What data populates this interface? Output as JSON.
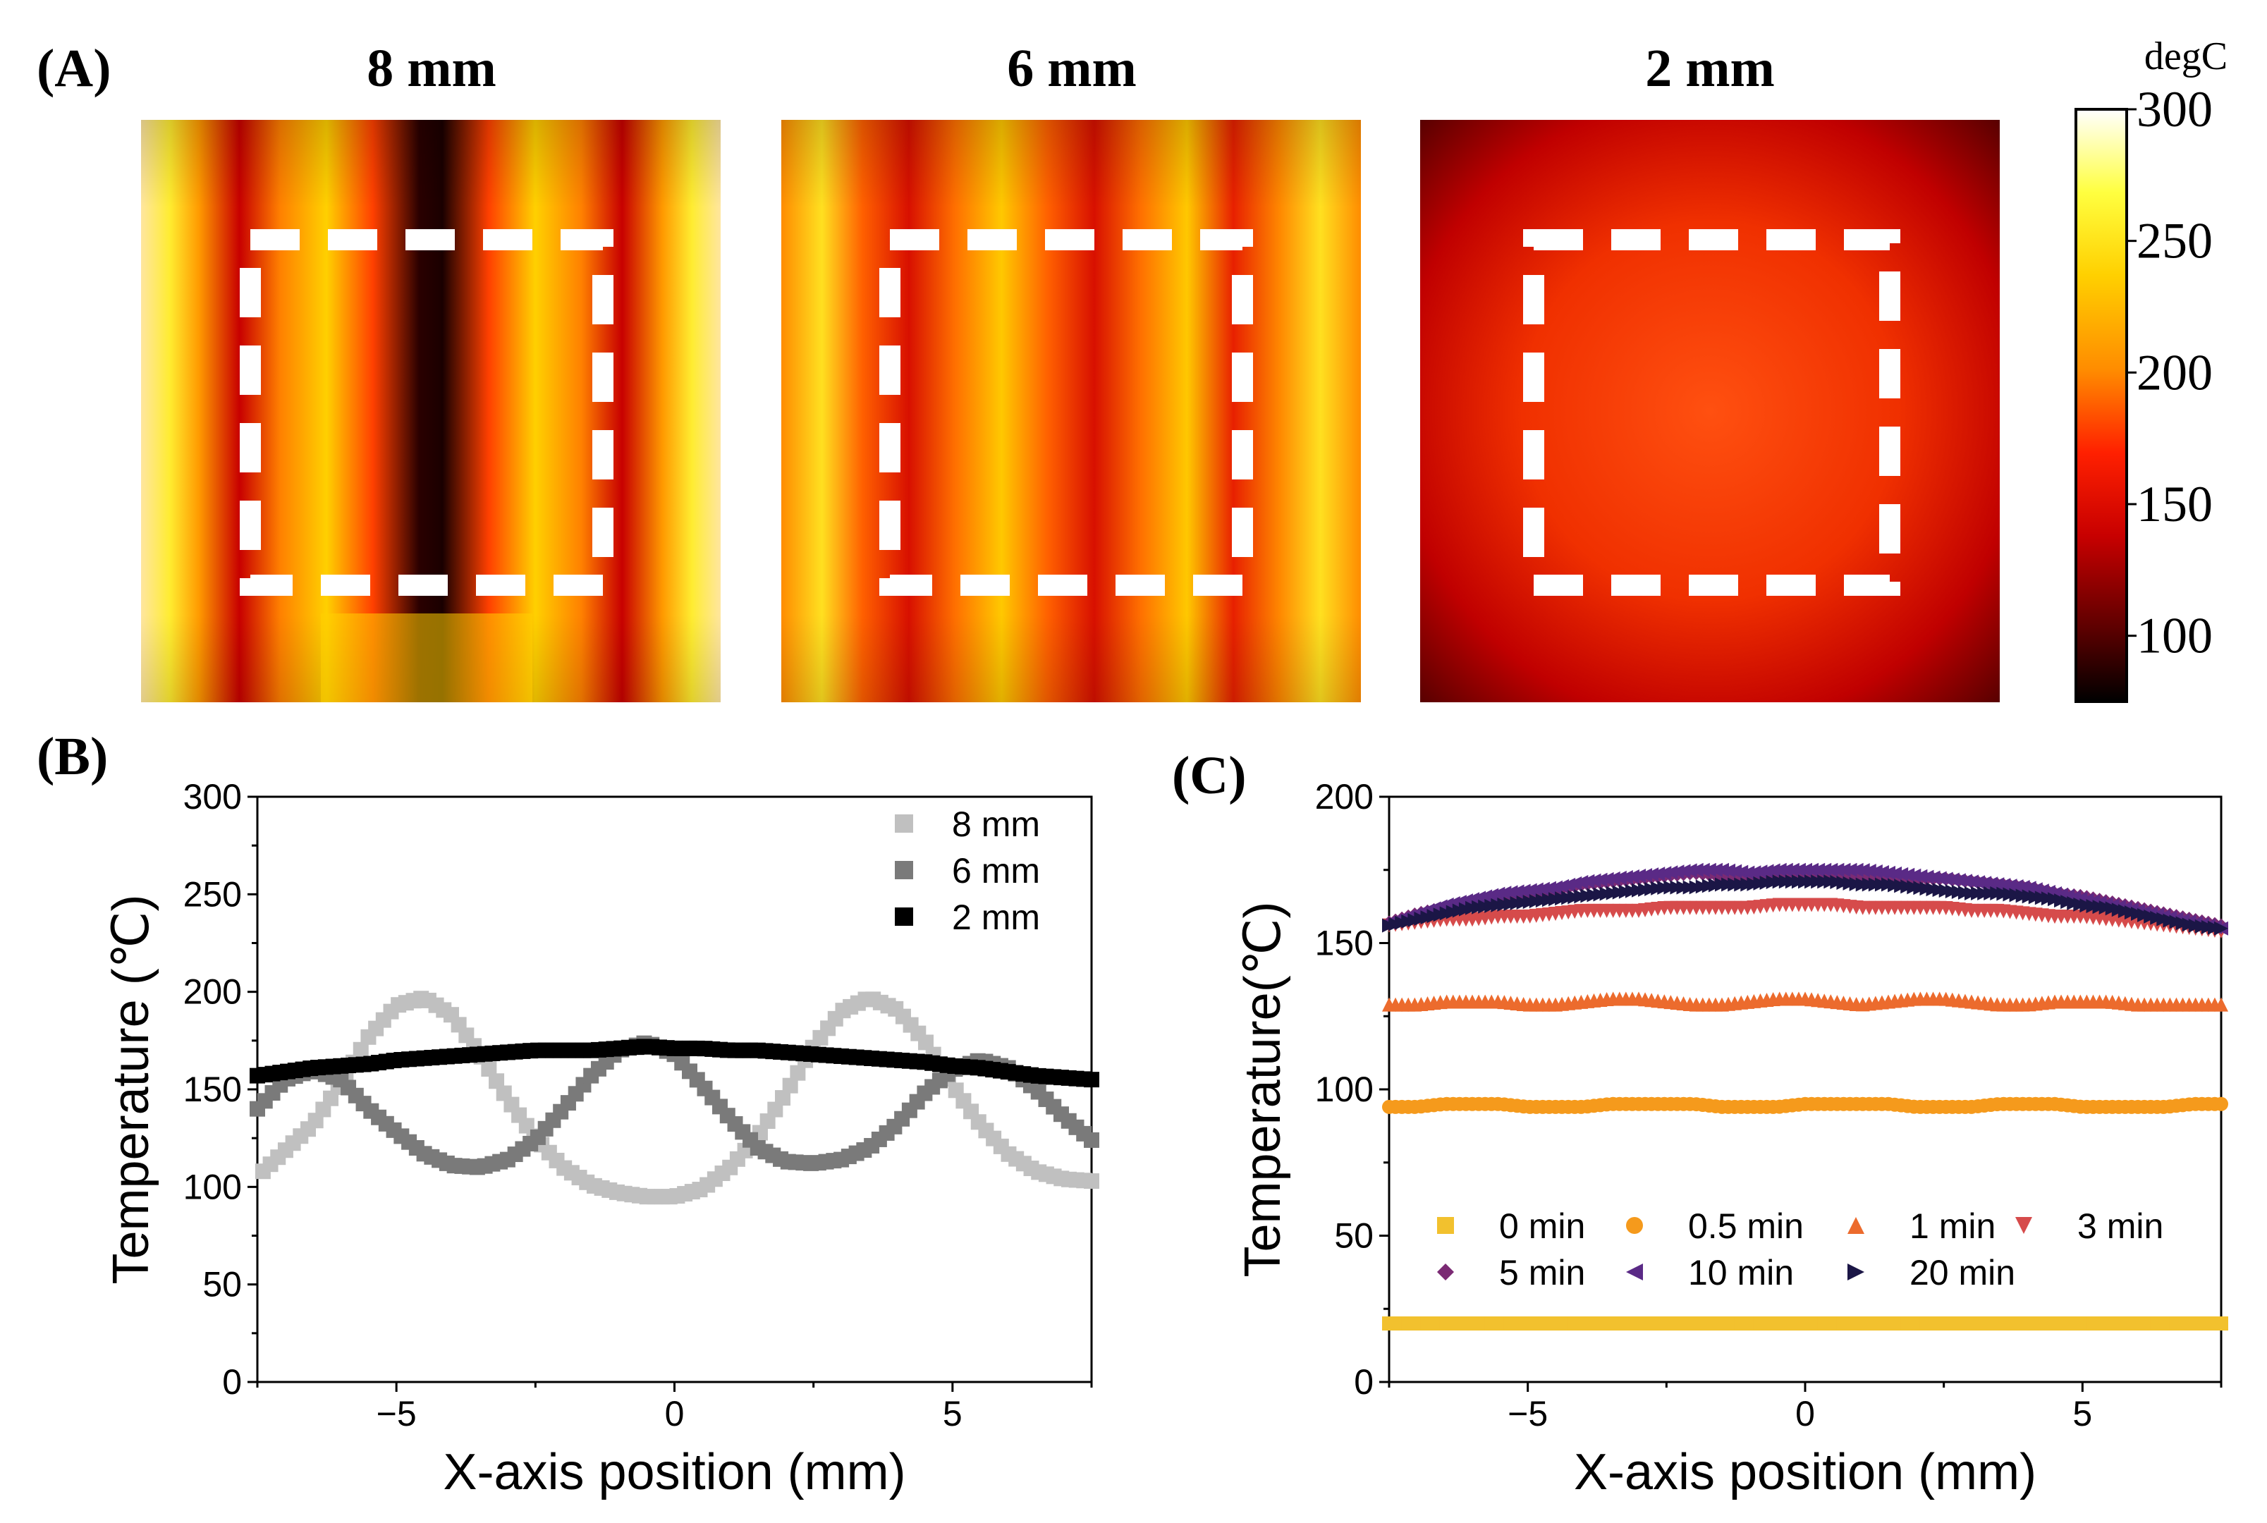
{
  "chart_data": [
    {
      "panel": "(A)",
      "type": "heatmap",
      "titles": [
        "8 mm",
        "6 mm",
        "2 mm"
      ],
      "colorbar": {
        "unit": "degC",
        "range": [
          75,
          300
        ],
        "ticks": [
          "300",
          "250",
          "200",
          "150",
          "100"
        ],
        "colormap": [
          "#000000",
          "#5a0000",
          "#c80000",
          "#ff2000",
          "#ff8c00",
          "#ffd000",
          "#ffff40",
          "#ffffff"
        ]
      },
      "overlay": "white dashed rectangle in each map"
    },
    {
      "panel": "(B)",
      "type": "scatter",
      "xlabel": "X-axis position (mm)",
      "ylabel": "Temperature (℃)",
      "xlim": [
        -7.5,
        7.5
      ],
      "ylim": [
        0,
        300
      ],
      "xticks": [
        "−5",
        "0",
        "5"
      ],
      "yticks": [
        "0",
        "50",
        "100",
        "150",
        "200",
        "250",
        "300"
      ],
      "legend_position": "top-right",
      "series": [
        {
          "name": "8 mm",
          "color": "#c0c0c0",
          "marker": "square",
          "x": [
            -7.4,
            -6.5,
            -6.0,
            -5.5,
            -5.0,
            -4.5,
            -4.0,
            -3.5,
            -3.0,
            -2.5,
            -2.0,
            -1.5,
            -1.0,
            -0.5,
            0.0,
            0.5,
            1.0,
            1.5,
            2.0,
            2.5,
            3.0,
            3.5,
            4.0,
            4.5,
            5.0,
            5.5,
            6.0,
            6.5,
            7.0,
            7.5
          ],
          "values": [
            108,
            132,
            153,
            177,
            193,
            197,
            188,
            168,
            145,
            125,
            110,
            101,
            97,
            95,
            95,
            99,
            110,
            126,
            148,
            172,
            190,
            197,
            191,
            175,
            152,
            132,
            117,
            108,
            104,
            103
          ]
        },
        {
          "name": "6 mm",
          "color": "#7a7a7a",
          "marker": "square",
          "x": [
            -7.5,
            -7.0,
            -6.5,
            -6.0,
            -5.5,
            -5.0,
            -4.5,
            -4.0,
            -3.5,
            -3.0,
            -2.5,
            -2.0,
            -1.5,
            -1.0,
            -0.5,
            0.0,
            0.5,
            1.0,
            1.5,
            2.0,
            2.5,
            3.0,
            3.5,
            4.0,
            4.5,
            5.0,
            5.5,
            6.0,
            6.5,
            7.0,
            7.5
          ],
          "values": [
            140,
            155,
            160,
            155,
            140,
            128,
            117,
            111,
            110,
            114,
            124,
            140,
            157,
            170,
            174,
            168,
            152,
            135,
            120,
            113,
            112,
            114,
            120,
            132,
            148,
            160,
            165,
            161,
            150,
            136,
            124
          ]
        },
        {
          "name": "2 mm",
          "color": "#000000",
          "marker": "square",
          "x": [
            -7.5,
            -7.0,
            -6.5,
            -6.0,
            -5.5,
            -5.0,
            -4.5,
            -4.0,
            -3.5,
            -3.0,
            -2.5,
            -2.0,
            -1.5,
            -1.0,
            -0.5,
            0.0,
            0.5,
            1.0,
            1.5,
            2.0,
            2.5,
            3.0,
            3.5,
            4.0,
            4.5,
            5.0,
            5.5,
            6.0,
            6.5,
            7.0,
            7.5
          ],
          "values": [
            157,
            159,
            161,
            162,
            163,
            165,
            166,
            167,
            168,
            169,
            170,
            170,
            170,
            171,
            172,
            171,
            171,
            170,
            170,
            169,
            168,
            167,
            166,
            165,
            164,
            162,
            161,
            159,
            157,
            156,
            155
          ]
        }
      ]
    },
    {
      "panel": "(C)",
      "type": "scatter",
      "xlabel": "X-axis position (mm)",
      "ylabel": "Temperature(℃)",
      "xlim": [
        -7.5,
        7.5
      ],
      "ylim": [
        0,
        200
      ],
      "xticks": [
        "−5",
        "0",
        "5"
      ],
      "yticks": [
        "0",
        "50",
        "100",
        "150",
        "200"
      ],
      "legend_position": "lower-center",
      "x": [
        -7.5,
        -7.0,
        -6.5,
        -6.0,
        -5.5,
        -5.0,
        -4.5,
        -4.0,
        -3.5,
        -3.0,
        -2.5,
        -2.0,
        -1.5,
        -1.0,
        -0.5,
        0.0,
        0.5,
        1.0,
        1.5,
        2.0,
        2.5,
        3.0,
        3.5,
        4.0,
        4.5,
        5.0,
        5.5,
        6.0,
        6.5,
        7.0,
        7.5
      ],
      "series": [
        {
          "name": "0 min",
          "color": "#f2c12e",
          "marker": "square",
          "values": [
            20,
            20,
            20,
            20,
            20,
            20,
            20,
            20,
            20,
            20,
            20,
            20,
            20,
            20,
            20,
            20,
            20,
            20,
            20,
            20,
            20,
            20,
            20,
            20,
            20,
            20,
            20,
            20,
            20,
            20,
            20
          ]
        },
        {
          "name": "0.5 min",
          "color": "#f59a1c",
          "marker": "circle",
          "values": [
            94,
            94,
            95,
            95,
            95,
            94,
            94,
            94,
            95,
            95,
            95,
            95,
            94,
            94,
            94,
            95,
            95,
            95,
            95,
            94,
            94,
            94,
            95,
            95,
            95,
            94,
            94,
            94,
            94,
            95,
            95
          ]
        },
        {
          "name": "1 min",
          "color": "#ec6b2d",
          "marker": "triangle-up",
          "values": [
            129,
            129,
            130,
            130,
            130,
            129,
            129,
            130,
            131,
            131,
            130,
            129,
            129,
            130,
            131,
            131,
            130,
            129,
            130,
            131,
            131,
            130,
            129,
            129,
            130,
            130,
            130,
            129,
            129,
            129,
            129
          ]
        },
        {
          "name": "3 min",
          "color": "#d64b4b",
          "marker": "triangle-down",
          "values": [
            156,
            157,
            158,
            158,
            159,
            159,
            160,
            161,
            161,
            161,
            162,
            162,
            162,
            162,
            163,
            163,
            163,
            162,
            162,
            162,
            162,
            161,
            161,
            160,
            159,
            159,
            158,
            157,
            156,
            155,
            154
          ]
        },
        {
          "name": "5 min",
          "color": "#7b2a74",
          "marker": "diamond",
          "values": [
            157,
            160,
            162,
            164,
            166,
            167,
            168,
            170,
            171,
            172,
            173,
            174,
            173,
            173,
            174,
            174,
            174,
            173,
            173,
            172,
            172,
            171,
            170,
            169,
            167,
            166,
            164,
            162,
            160,
            158,
            156
          ]
        },
        {
          "name": "10 min",
          "color": "#5a2a86",
          "marker": "triangle-left",
          "values": [
            157,
            160,
            163,
            165,
            167,
            168,
            169,
            171,
            172,
            173,
            174,
            175,
            175,
            174,
            175,
            175,
            175,
            175,
            174,
            173,
            172,
            171,
            170,
            169,
            167,
            165,
            163,
            161,
            159,
            157,
            155
          ]
        },
        {
          "name": "20 min",
          "color": "#1b1646",
          "marker": "triangle-right",
          "values": [
            156,
            158,
            160,
            162,
            163,
            164,
            165,
            166,
            167,
            168,
            169,
            169,
            170,
            170,
            171,
            171,
            171,
            170,
            170,
            169,
            168,
            167,
            167,
            166,
            165,
            163,
            162,
            160,
            158,
            156,
            155
          ]
        }
      ]
    }
  ]
}
